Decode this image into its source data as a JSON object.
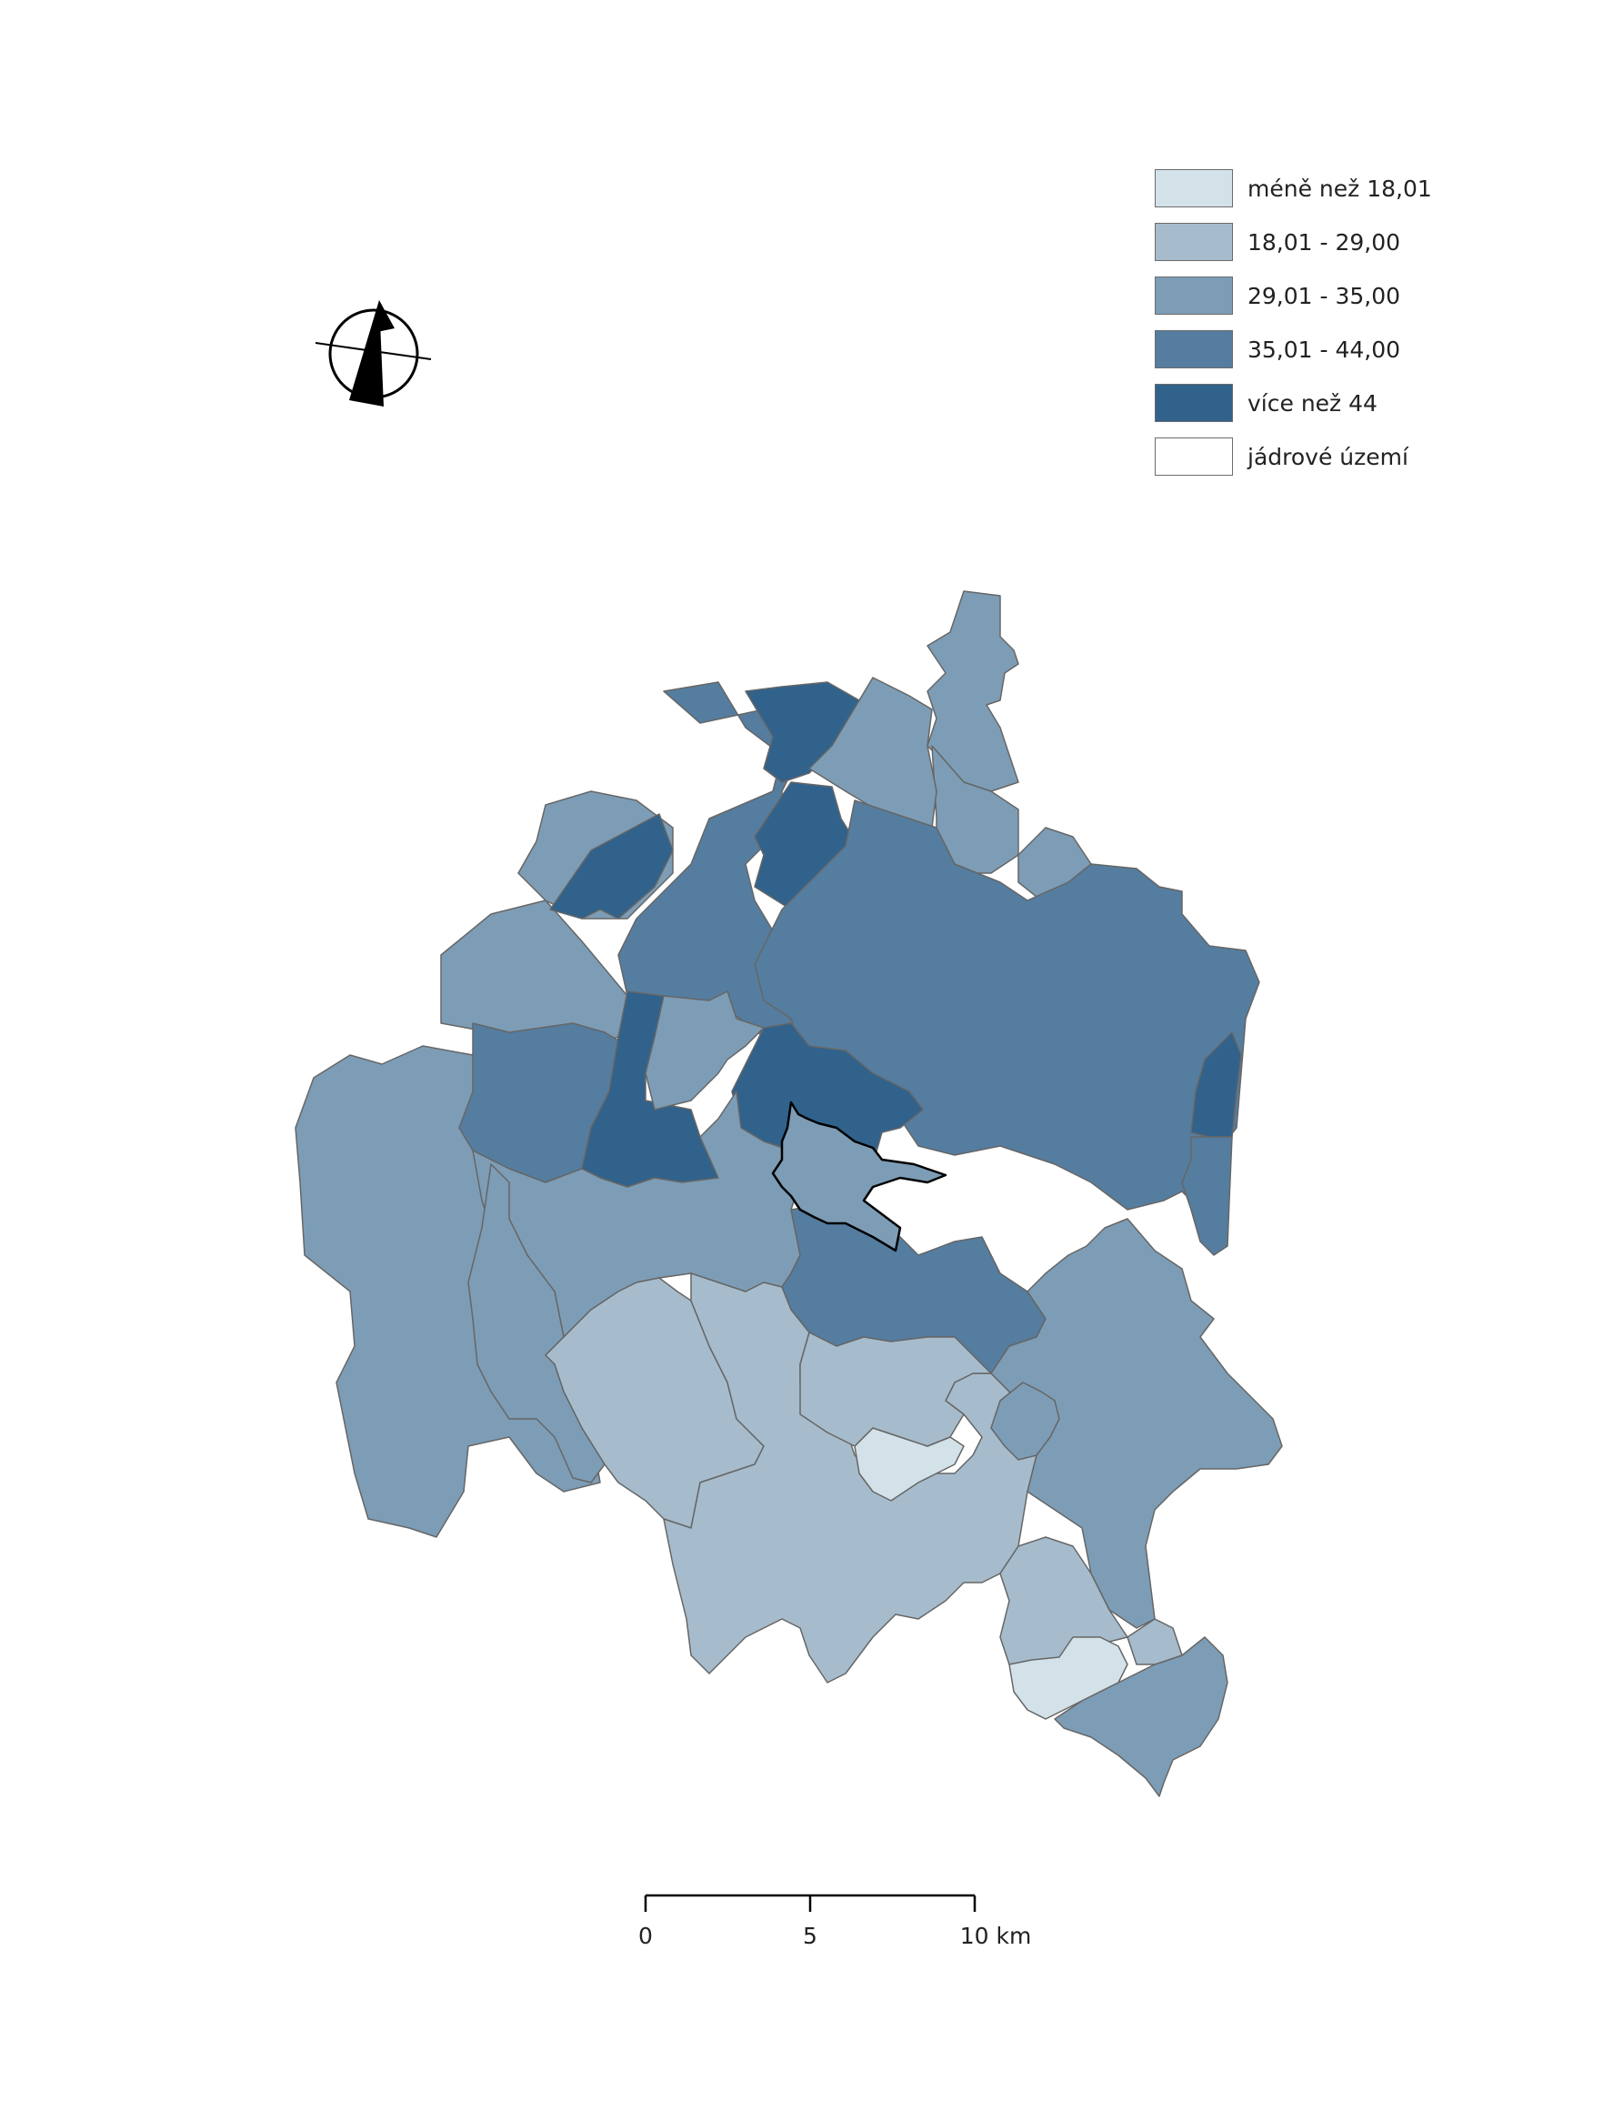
{
  "legend": {
    "items": [
      {
        "label": "méně než 18,01",
        "color": "#d2e2e8"
      },
      {
        "label": "18,01 - 29,00",
        "color": "#a6bccc"
      },
      {
        "label": "29,01 - 35,00",
        "color": "#7d9db6"
      },
      {
        "label": "35,01 - 44,00",
        "color": "#557d9f"
      },
      {
        "label": "více než 44",
        "color": "#30628c"
      },
      {
        "label": "jádrové území",
        "color": "#ffffff"
      }
    ]
  },
  "scale_bar": {
    "labels": [
      "0",
      "5",
      "10 km"
    ]
  },
  "north_arrow": {
    "icon": "north-arrow-icon"
  },
  "colors": {
    "boundary": "#666666",
    "core_outline": "#000000"
  }
}
